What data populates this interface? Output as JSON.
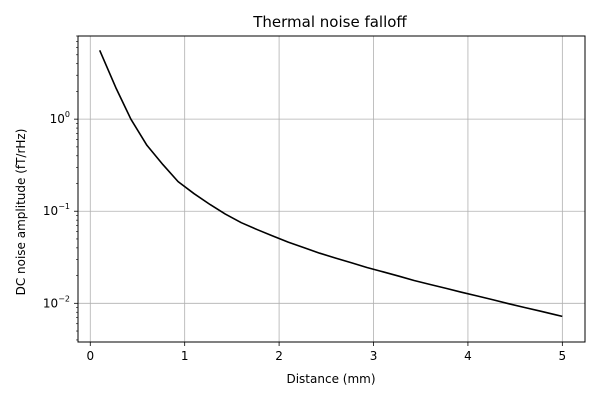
{
  "chart_data": {
    "type": "line",
    "title": "Thermal noise falloff",
    "xlabel": "Distance (mm)",
    "ylabel": "DC noise amplitude (fT/rHz)",
    "yscale": "log",
    "xlim": [
      -0.13,
      5.24
    ],
    "ylim": [
      0.0038,
      8.0
    ],
    "grid": true,
    "xticks": [
      0,
      1,
      2,
      3,
      4,
      5
    ],
    "xtick_labels": [
      "0",
      "1",
      "2",
      "3",
      "4",
      "5"
    ],
    "yticks": [
      {
        "value": 0.01,
        "base": "10",
        "exp": "−2"
      },
      {
        "value": 0.1,
        "base": "10",
        "exp": "−1"
      },
      {
        "value": 1,
        "base": "10",
        "exp": "0"
      }
    ],
    "series": [
      {
        "color": "#000000",
        "x": [
          0.1,
          0.27,
          0.43,
          0.6,
          0.77,
          0.93,
          1.1,
          1.27,
          1.43,
          1.6,
          1.77,
          1.93,
          2.1,
          2.27,
          2.43,
          2.6,
          2.77,
          2.93,
          3.1,
          3.27,
          3.43,
          3.6,
          3.77,
          3.93,
          4.1,
          4.27,
          4.43,
          4.6,
          4.77,
          4.93,
          5.0
        ],
        "y": [
          5.6,
          2.2,
          1.0,
          0.52,
          0.32,
          0.21,
          0.155,
          0.118,
          0.093,
          0.075,
          0.063,
          0.054,
          0.046,
          0.04,
          0.035,
          0.031,
          0.0275,
          0.0245,
          0.022,
          0.0197,
          0.0177,
          0.016,
          0.0145,
          0.0132,
          0.012,
          0.0109,
          0.0099,
          0.009,
          0.0082,
          0.0075,
          0.0072
        ]
      }
    ]
  }
}
